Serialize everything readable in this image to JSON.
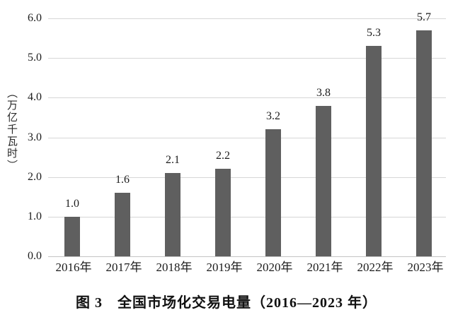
{
  "figure": {
    "caption": "图 3　全国市场化交易电量（2016—2023 年）"
  },
  "chart_data": {
    "type": "bar",
    "title": "图 3 全国市场化交易电量（2016—2023 年）",
    "xlabel": "",
    "ylabel": "（万亿千瓦时）",
    "categories": [
      "2016年",
      "2017年",
      "2018年",
      "2019年",
      "2020年",
      "2021年",
      "2022年",
      "2023年"
    ],
    "values": [
      1.0,
      1.6,
      2.1,
      2.2,
      3.2,
      3.8,
      5.3,
      5.7
    ],
    "bar_value_labels": [
      "1.0",
      "1.6",
      "2.1",
      "2.2",
      "3.2",
      "3.8",
      "5.3",
      "5.7"
    ],
    "ylim": [
      0.0,
      6.0
    ],
    "ytick_labels": [
      "0.0",
      "1.0",
      "2.0",
      "3.0",
      "4.0",
      "5.0",
      "6.0"
    ],
    "grid": "horizontal",
    "legend": "none",
    "colors": {
      "bar": "#5f5f5f",
      "gridline": "#d6d6d6",
      "axis_line": "#c4c4c4",
      "text": "#1c1c1c",
      "background": "#ffffff"
    }
  }
}
